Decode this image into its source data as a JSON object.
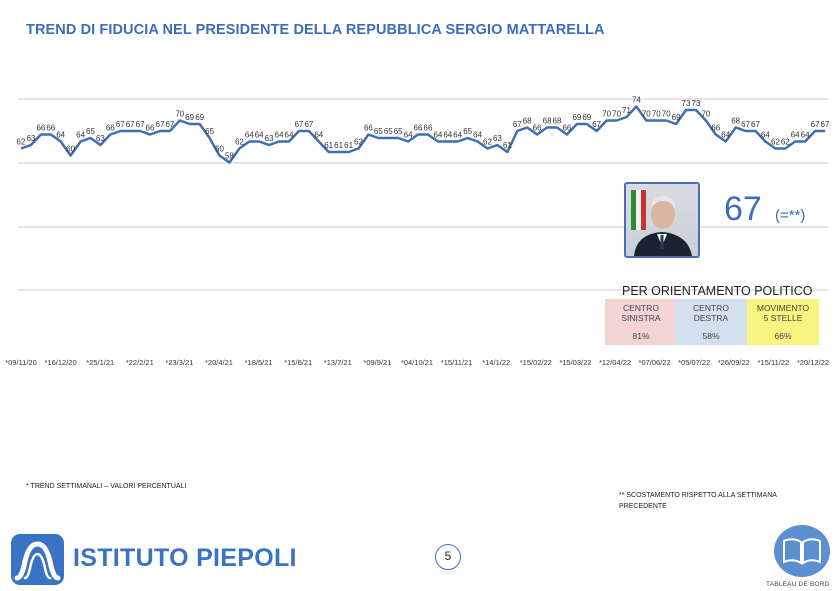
{
  "header": {
    "title": "TREND DI FIDUCIA NEL PRESIDENTE DELLA REPUBBLICA SERGIO MATTARELLA"
  },
  "summary": {
    "current_value": "67",
    "change_note": "(=**)"
  },
  "orientation": {
    "title": "PER ORIENTAMENTO POLITICO",
    "groups": [
      {
        "label_line1": "CENTRO",
        "label_line2": "SINISTRA",
        "value": "81%",
        "color": "#f2d4d4"
      },
      {
        "label_line1": "CENTRO",
        "label_line2": "DESTRA",
        "value": "58%",
        "color": "#d5e0ef"
      },
      {
        "label_line1": "MOVIMENTO",
        "label_line2": "5 STELLE",
        "value": "66%",
        "color": "#f8f480"
      }
    ]
  },
  "footnotes": {
    "left": "* TREND SETTIMANALI – VALORI PERCENTUALI",
    "right": "** SCOSTAMENTO RISPETTO ALLA SETTIMANA PRECEDENTE"
  },
  "footer": {
    "brand": "ISTITUTO PIEPOLI",
    "page_number": "5",
    "tableau": "TABLEAU DE BORD"
  },
  "colors": {
    "line": "#3e6fb5",
    "title": "#3d6cb8",
    "grid": "#cccccc"
  },
  "chart_data": {
    "type": "line",
    "title": "TREND DI FIDUCIA NEL PRESIDENTE DELLA REPUBBLICA SERGIO MATTARELLA",
    "xlabel": "",
    "ylabel": "",
    "grid": true,
    "x_tick_labels": [
      "*09/11/20",
      "*16/12/20",
      "*25/1/21",
      "*22/2/21",
      "*23/3/21",
      "*20/4/21",
      "*18/5/21",
      "*15/6/21",
      "*13/7/21",
      "*09/9/21",
      "*04/10/21",
      "*15/11/21",
      "*14/1/22",
      "*15/02/22",
      "*15/03/22",
      "*12/04/22",
      "*07/06/22",
      "*05/07/22",
      "*26/09/22",
      "*15/11/22",
      "*20/12/22"
    ],
    "series": [
      {
        "values": [
          62,
          63,
          66,
          66,
          64,
          60,
          64,
          65,
          63,
          66,
          67,
          67,
          67,
          66,
          67,
          67,
          70,
          69,
          69,
          65,
          60,
          58,
          62,
          64,
          64,
          63,
          64,
          64,
          67,
          67,
          64,
          61,
          61,
          61,
          62,
          66,
          65,
          65,
          65,
          64,
          66,
          66,
          64,
          64,
          64,
          65,
          64,
          62,
          63,
          61,
          67,
          68,
          66,
          68,
          68,
          66,
          69,
          69,
          67,
          70,
          70,
          71,
          74,
          70,
          70,
          70,
          69,
          73,
          73,
          70,
          66,
          64,
          68,
          67,
          67,
          64,
          62,
          62,
          64,
          64,
          67,
          67
        ]
      }
    ]
  }
}
